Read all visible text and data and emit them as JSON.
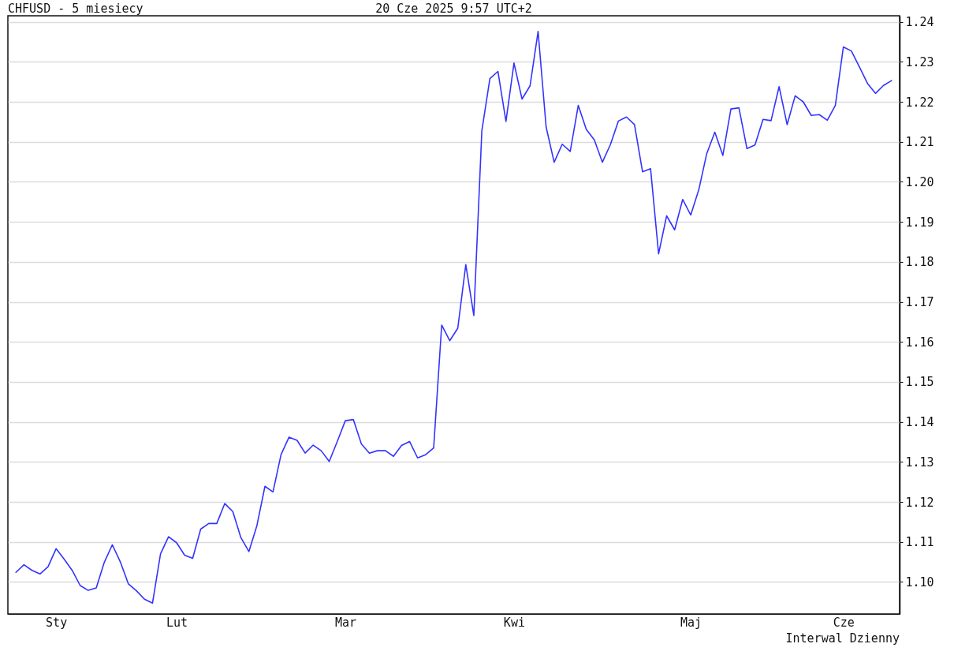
{
  "chart_data": {
    "type": "line",
    "title": "CHFUSD - 5 miesiecy",
    "subtitle": "20 Cze 2025 9:57 UTC+2",
    "annotations": [
      "Interwal Dzienny"
    ],
    "categories": [
      null,
      null,
      null,
      null,
      null,
      "Sty",
      null,
      null,
      null,
      null,
      null,
      null,
      null,
      null,
      null,
      null,
      null,
      null,
      null,
      null,
      "Lut",
      null,
      null,
      null,
      null,
      null,
      null,
      null,
      null,
      null,
      null,
      null,
      null,
      null,
      null,
      null,
      null,
      null,
      null,
      null,
      null,
      "Mar",
      null,
      null,
      null,
      null,
      null,
      null,
      null,
      null,
      null,
      null,
      null,
      null,
      null,
      null,
      null,
      null,
      null,
      null,
      null,
      null,
      "Kwi",
      null,
      null,
      null,
      null,
      null,
      null,
      null,
      null,
      null,
      null,
      null,
      null,
      null,
      null,
      null,
      null,
      null,
      null,
      null,
      null,
      null,
      "Maj",
      null,
      null,
      null,
      null,
      null,
      null,
      null,
      null,
      null,
      null,
      null,
      null,
      null,
      null,
      null,
      null,
      null,
      null,
      "Cze",
      null,
      null,
      null,
      null,
      null,
      null
    ],
    "series": [
      {
        "color": "#3333ff",
        "values": [
          1.1024,
          1.1043,
          1.1029,
          1.102,
          1.1038,
          1.1083,
          1.1057,
          1.1029,
          1.0991,
          1.0979,
          1.0985,
          1.1049,
          1.1093,
          1.105,
          1.0995,
          1.0978,
          1.0957,
          1.0947,
          1.107,
          1.1113,
          1.1098,
          1.1067,
          1.1059,
          1.1132,
          1.1146,
          1.1146,
          1.1196,
          1.1176,
          1.1111,
          1.1076,
          1.1141,
          1.1239,
          1.1225,
          1.1318,
          1.1362,
          1.1354,
          1.1322,
          1.1342,
          1.1328,
          1.1301,
          1.1351,
          1.1403,
          1.1406,
          1.1345,
          1.1322,
          1.1328,
          1.1328,
          1.1314,
          1.1341,
          1.1351,
          1.131,
          1.1318,
          1.1335,
          1.1642,
          1.1603,
          1.1634,
          1.1793,
          1.1666,
          1.2128,
          1.2258,
          1.2276,
          1.2151,
          1.2297,
          1.2207,
          1.224,
          1.2376,
          1.2137,
          1.2049,
          1.2094,
          1.2076,
          1.2191,
          1.2131,
          1.2105,
          1.2049,
          1.2093,
          1.2152,
          1.2162,
          1.2143,
          1.2025,
          1.2033,
          1.182,
          1.1915,
          1.188,
          1.1956,
          1.1917,
          1.198,
          1.2071,
          1.2124,
          1.2066,
          1.2182,
          1.2185,
          1.2083,
          1.2092,
          1.2156,
          1.2153,
          1.2238,
          1.2143,
          1.2215,
          1.22,
          1.2166,
          1.2168,
          1.2154,
          1.2191,
          1.2337,
          1.2327,
          1.2287,
          1.2246,
          1.2221,
          1.2241,
          1.2253
        ]
      }
    ],
    "ylim": [
      1.092,
      1.2415
    ],
    "yticks": [
      {
        "value": 1.1,
        "label": "1.10"
      },
      1.11,
      1.12,
      1.13,
      1.14,
      1.15,
      1.16,
      1.17,
      1.18,
      1.19,
      {
        "value": 1.2,
        "label": "1.20"
      },
      1.21,
      1.22,
      1.23,
      1.24
    ],
    "grid": "y"
  }
}
